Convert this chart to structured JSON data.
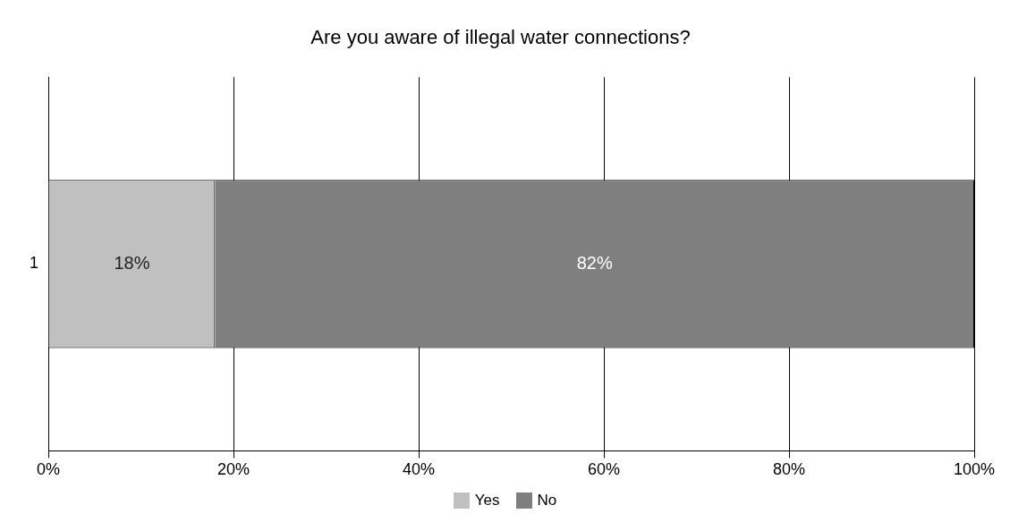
{
  "chart_data": {
    "type": "bar",
    "title": "Are you aware of illegal water connections?",
    "orientation": "horizontal",
    "stacked": true,
    "categories": [
      "1"
    ],
    "series": [
      {
        "name": "Yes",
        "color": "#c0c0c0",
        "values": [
          18
        ],
        "value_labels": [
          "18%"
        ]
      },
      {
        "name": "No",
        "color": "#7f7f7f",
        "values": [
          82
        ],
        "value_labels": [
          "82%"
        ]
      }
    ],
    "xlim": [
      0,
      100
    ],
    "xticks": [
      {
        "value": 0,
        "label": "0%"
      },
      {
        "value": 20,
        "label": "20%"
      },
      {
        "value": 40,
        "label": "40%"
      },
      {
        "value": 60,
        "label": "60%"
      },
      {
        "value": 80,
        "label": "80%"
      },
      {
        "value": 100,
        "label": "100%"
      }
    ],
    "grid": "x",
    "legend": "bottom"
  }
}
